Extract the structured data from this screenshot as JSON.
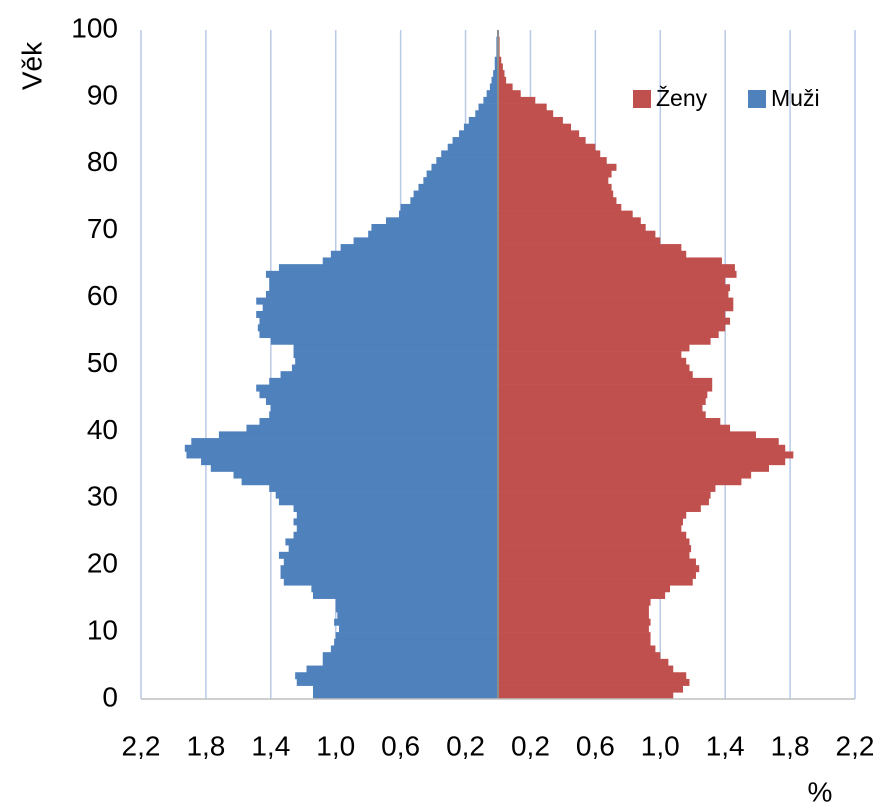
{
  "chart_data": {
    "type": "pyramid",
    "y_label": "Věk",
    "x_label": "%",
    "xlim": [
      -2.2,
      2.2
    ],
    "xticks": [
      {
        "value": -2.2,
        "label": "2,2"
      },
      {
        "value": -1.8,
        "label": "1,8"
      },
      {
        "value": -1.4,
        "label": "1,4"
      },
      {
        "value": -1.0,
        "label": "1,0"
      },
      {
        "value": -0.6,
        "label": "0,6"
      },
      {
        "value": -0.2,
        "label": "0,2"
      },
      {
        "value": 0.2,
        "label": "0,2"
      },
      {
        "value": 0.6,
        "label": "0,6"
      },
      {
        "value": 1.0,
        "label": "1,0"
      },
      {
        "value": 1.4,
        "label": "1,4"
      },
      {
        "value": 1.8,
        "label": "1,8"
      },
      {
        "value": 2.2,
        "label": "2,2"
      }
    ],
    "ylim": [
      0,
      100
    ],
    "yticks": [
      0,
      10,
      20,
      30,
      40,
      50,
      60,
      70,
      80,
      90,
      100
    ],
    "grid": true,
    "legend": "top-right",
    "y": [
      0,
      1,
      2,
      3,
      4,
      5,
      6,
      7,
      8,
      9,
      10,
      11,
      12,
      13,
      14,
      15,
      16,
      17,
      18,
      19,
      20,
      21,
      22,
      23,
      24,
      25,
      26,
      27,
      28,
      29,
      30,
      31,
      32,
      33,
      34,
      35,
      36,
      37,
      38,
      39,
      40,
      41,
      42,
      43,
      44,
      45,
      46,
      47,
      48,
      49,
      50,
      51,
      52,
      53,
      54,
      55,
      56,
      57,
      58,
      59,
      60,
      61,
      62,
      63,
      64,
      65,
      66,
      67,
      68,
      69,
      70,
      71,
      72,
      73,
      74,
      75,
      76,
      77,
      78,
      79,
      80,
      81,
      82,
      83,
      84,
      85,
      86,
      87,
      88,
      89,
      90,
      91,
      92,
      93,
      94,
      95,
      96,
      97,
      98,
      99
    ],
    "series": [
      {
        "name": "Ženy",
        "color": "#c0504d",
        "values": [
          1.08,
          1.14,
          1.18,
          1.16,
          1.08,
          1.05,
          1.0,
          0.97,
          0.94,
          0.94,
          0.93,
          0.94,
          0.93,
          0.93,
          0.94,
          1.03,
          1.06,
          1.2,
          1.22,
          1.24,
          1.22,
          1.18,
          1.19,
          1.18,
          1.16,
          1.13,
          1.14,
          1.16,
          1.25,
          1.3,
          1.31,
          1.34,
          1.5,
          1.56,
          1.67,
          1.77,
          1.82,
          1.77,
          1.73,
          1.59,
          1.43,
          1.37,
          1.28,
          1.26,
          1.28,
          1.29,
          1.32,
          1.32,
          1.2,
          1.18,
          1.16,
          1.13,
          1.18,
          1.31,
          1.36,
          1.4,
          1.43,
          1.4,
          1.45,
          1.45,
          1.42,
          1.43,
          1.4,
          1.47,
          1.46,
          1.38,
          1.16,
          1.13,
          1.0,
          0.97,
          0.91,
          0.88,
          0.83,
          0.76,
          0.73,
          0.71,
          0.7,
          0.68,
          0.7,
          0.73,
          0.67,
          0.63,
          0.6,
          0.54,
          0.5,
          0.45,
          0.4,
          0.34,
          0.3,
          0.23,
          0.14,
          0.09,
          0.05,
          0.04,
          0.03,
          0.02,
          0.01,
          0.01,
          0.01,
          0.005
        ]
      },
      {
        "name": "Muži",
        "color": "#4f81bd",
        "values": [
          -1.14,
          -1.14,
          -1.24,
          -1.25,
          -1.18,
          -1.08,
          -1.08,
          -1.03,
          -1.01,
          -1.0,
          -0.98,
          -1.01,
          -0.99,
          -1.0,
          -1.0,
          -1.14,
          -1.15,
          -1.32,
          -1.34,
          -1.34,
          -1.32,
          -1.35,
          -1.29,
          -1.31,
          -1.26,
          -1.24,
          -1.26,
          -1.24,
          -1.26,
          -1.35,
          -1.37,
          -1.41,
          -1.58,
          -1.63,
          -1.77,
          -1.83,
          -1.92,
          -1.93,
          -1.89,
          -1.72,
          -1.55,
          -1.47,
          -1.41,
          -1.4,
          -1.43,
          -1.47,
          -1.49,
          -1.41,
          -1.34,
          -1.27,
          -1.25,
          -1.26,
          -1.26,
          -1.4,
          -1.47,
          -1.48,
          -1.47,
          -1.49,
          -1.45,
          -1.49,
          -1.43,
          -1.41,
          -1.41,
          -1.43,
          -1.35,
          -1.08,
          -1.03,
          -0.97,
          -0.89,
          -0.8,
          -0.78,
          -0.69,
          -0.61,
          -0.6,
          -0.54,
          -0.52,
          -0.49,
          -0.46,
          -0.44,
          -0.41,
          -0.38,
          -0.35,
          -0.31,
          -0.28,
          -0.24,
          -0.21,
          -0.18,
          -0.14,
          -0.12,
          -0.09,
          -0.07,
          -0.05,
          -0.04,
          -0.03,
          -0.02,
          -0.02,
          -0.01,
          -0.01,
          -0.01,
          -0.005
        ]
      }
    ]
  }
}
